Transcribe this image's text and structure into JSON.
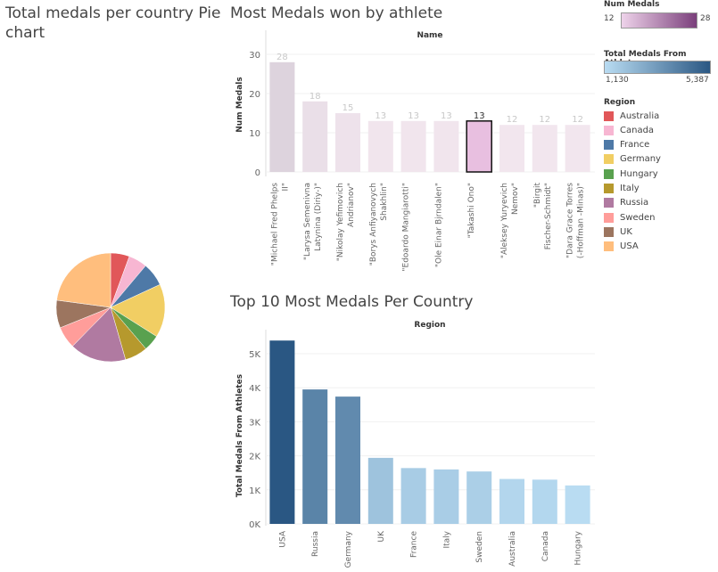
{
  "titles": {
    "pie_line1": "Total medals per country Pie",
    "pie_line2": "chart",
    "athletes": "Most Medals won by athlete",
    "countries": "Top 10 Most Medals Per Country"
  },
  "legends": {
    "num_medals": {
      "title": "Num Medals",
      "min": "12",
      "max": "28",
      "color_low": "#eed3ea",
      "color_high": "#7a3f7b"
    },
    "total_medals": {
      "title": "Total Medals From Athlet..",
      "min": "1,130",
      "max": "5,387",
      "color_low": "#b9dcf2",
      "color_high": "#2a5783"
    },
    "region": {
      "title": "Region",
      "items": [
        {
          "label": "Australia",
          "color": "#e15759"
        },
        {
          "label": "Canada",
          "color": "#f7b6d2"
        },
        {
          "label": "France",
          "color": "#4e79a7"
        },
        {
          "label": "Germany",
          "color": "#f1ce63"
        },
        {
          "label": "Hungary",
          "color": "#59a14f"
        },
        {
          "label": "Italy",
          "color": "#b6992d"
        },
        {
          "label": "Russia",
          "color": "#b07aa1"
        },
        {
          "label": "Sweden",
          "color": "#ff9d9a"
        },
        {
          "label": "UK",
          "color": "#9c755f"
        },
        {
          "label": "USA",
          "color": "#ffbe7d"
        }
      ]
    }
  },
  "chart_data": [
    {
      "type": "pie",
      "title": "Total medals per country Pie chart",
      "slices": [
        {
          "label": "Australia",
          "value": 1320,
          "color": "#e15759"
        },
        {
          "label": "Canada",
          "value": 1300,
          "color": "#f7b6d2"
        },
        {
          "label": "France",
          "value": 1640,
          "color": "#4e79a7"
        },
        {
          "label": "Germany",
          "value": 3740,
          "color": "#f1ce63"
        },
        {
          "label": "Hungary",
          "value": 1130,
          "color": "#59a14f"
        },
        {
          "label": "Italy",
          "value": 1600,
          "color": "#b6992d"
        },
        {
          "label": "Russia",
          "value": 3950,
          "color": "#b07aa1"
        },
        {
          "label": "Sweden",
          "value": 1540,
          "color": "#ff9d9a"
        },
        {
          "label": "UK",
          "value": 1940,
          "color": "#9c755f"
        },
        {
          "label": "USA",
          "value": 5387,
          "color": "#ffbe7d"
        }
      ]
    },
    {
      "type": "bar",
      "title": "Most Medals won by athlete",
      "header": "Name",
      "ylabel": "Num Medals",
      "ylim": [
        0,
        30
      ],
      "yticks": [
        0,
        10,
        20,
        30
      ],
      "categories": [
        [
          "\"Michael Fred Phelps",
          "II\""
        ],
        [
          "\"Larysa Semenivna",
          "Latynina (Diriy-)\""
        ],
        [
          "\"Nikolay Yefimovich",
          "Andrianov\""
        ],
        [
          "\"Borys Anfiyanovych",
          "Shakhlin\""
        ],
        [
          "\"Edoardo Mangiarotti\""
        ],
        [
          "\"Ole Einar Bjrndalen\""
        ],
        [
          "\"Takashi Ono\""
        ],
        [
          "\"Aleksey Yuryevich",
          "Nemov\""
        ],
        [
          "\"Birgit",
          "Fischer-Schmidt\""
        ],
        [
          "\"Dara Grace Torres",
          "(-Hoffman -Minas)\""
        ]
      ],
      "values": [
        28,
        18,
        15,
        13,
        13,
        13,
        13,
        12,
        12,
        12
      ],
      "highlighted_index": 6
    },
    {
      "type": "bar",
      "title": "Top 10 Most Medals Per Country",
      "header": "Region",
      "ylabel": "Total Medals From Athletes",
      "ylim": [
        0,
        5600
      ],
      "yticks": [
        0,
        1000,
        2000,
        3000,
        4000,
        5000
      ],
      "ytick_labels": [
        "0K",
        "1K",
        "2K",
        "3K",
        "4K",
        "5K"
      ],
      "categories": [
        "USA",
        "Russia",
        "Germany",
        "UK",
        "France",
        "Italy",
        "Sweden",
        "Australia",
        "Canada",
        "Hungary"
      ],
      "values": [
        5387,
        3950,
        3740,
        1940,
        1640,
        1600,
        1540,
        1320,
        1300,
        1130
      ]
    }
  ]
}
